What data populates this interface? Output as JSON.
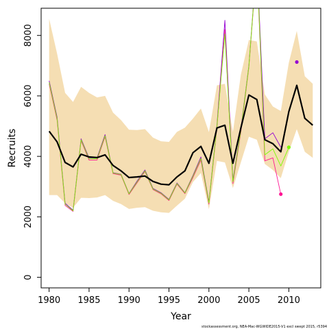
{
  "credit": "stockassessment.org, NEA-Mac-WGWIDE2015-V1 excl swept 2015, r5394",
  "chart_data": {
    "type": "line",
    "xlabel": "Year",
    "ylabel": "Recruits",
    "xlim": [
      1979,
      2014
    ],
    "ylim": [
      -350,
      8900
    ],
    "xticks": [
      1980,
      1985,
      1990,
      1995,
      2000,
      2005,
      2010
    ],
    "yticks": [
      0,
      2000,
      4000,
      6000,
      8000
    ],
    "x": [
      1980,
      1981,
      1982,
      1983,
      1984,
      1985,
      1986,
      1987,
      1988,
      1989,
      1990,
      1991,
      1992,
      1993,
      1994,
      1995,
      1996,
      1997,
      1998,
      1999,
      2000,
      2001,
      2002,
      2003,
      2004,
      2005,
      2006,
      2007,
      2008,
      2009,
      2010,
      2011,
      2012,
      2013
    ],
    "band": {
      "color": "#f5deb3",
      "upper": [
        8550,
        7400,
        6100,
        5800,
        6300,
        6100,
        5950,
        6000,
        5450,
        5200,
        4880,
        4870,
        4900,
        4620,
        4500,
        4480,
        4810,
        4950,
        5250,
        5580,
        4800,
        6350,
        6400,
        4800,
        6700,
        7850,
        7800,
        6050,
        5650,
        5500,
        7100,
        8150,
        6650,
        6400
      ],
      "lower": [
        2720,
        2720,
        2450,
        2300,
        2630,
        2620,
        2640,
        2720,
        2530,
        2420,
        2260,
        2300,
        2320,
        2200,
        2150,
        2130,
        2370,
        2600,
        3150,
        3450,
        2250,
        3850,
        3800,
        2950,
        3800,
        4650,
        4550,
        3750,
        3550,
        3280,
        4150,
        4900,
        4150,
        3950
      ]
    },
    "series": [
      {
        "color": "#000000",
        "values": [
          4830,
          4480,
          3800,
          3650,
          4070,
          3980,
          3960,
          4050,
          3700,
          3520,
          3300,
          3320,
          3350,
          3170,
          3080,
          3060,
          3320,
          3520,
          4120,
          4330,
          3770,
          4940,
          5030,
          3770,
          4940,
          6030,
          5880,
          4550,
          4420,
          4150,
          5480,
          6350,
          5260,
          5030
        ]
      },
      {
        "color": "#9400d3",
        "values": [
          6500,
          5300,
          2450,
          2220,
          4580,
          3950,
          3950,
          4720,
          3460,
          3410,
          2770,
          3180,
          3550,
          2940,
          2800,
          2580,
          3120,
          2800,
          3370,
          3980,
          2490,
          5030,
          8500,
          3210,
          4900,
          7000,
          10500,
          4580,
          4780,
          4300,
          null,
          7120,
          null,
          null
        ]
      },
      {
        "color": "#ff1493",
        "values": [
          6400,
          5200,
          2380,
          2180,
          4520,
          3880,
          3880,
          4650,
          3430,
          3380,
          2740,
          3120,
          3500,
          2900,
          2760,
          2540,
          3080,
          2770,
          3300,
          3880,
          2420,
          4950,
          8200,
          3100,
          4800,
          6950,
          10400,
          3850,
          3950,
          2750,
          null,
          null,
          null,
          null
        ]
      },
      {
        "color": "#7cfc00",
        "values": [
          6450,
          5250,
          2420,
          2200,
          4550,
          3920,
          3920,
          4680,
          3450,
          3400,
          2760,
          3150,
          3520,
          2920,
          2780,
          2560,
          3100,
          2790,
          3340,
          3930,
          2460,
          4990,
          8050,
          3160,
          4850,
          6980,
          10450,
          4050,
          4250,
          3680,
          4300,
          null,
          null,
          null
        ]
      }
    ],
    "markers": [
      {
        "color": "#9400d3",
        "x": 2011,
        "y": 7120
      },
      {
        "color": "#ff1493",
        "x": 2009,
        "y": 2750
      },
      {
        "color": "#7cfc00",
        "x": 2010,
        "y": 4300
      }
    ]
  }
}
